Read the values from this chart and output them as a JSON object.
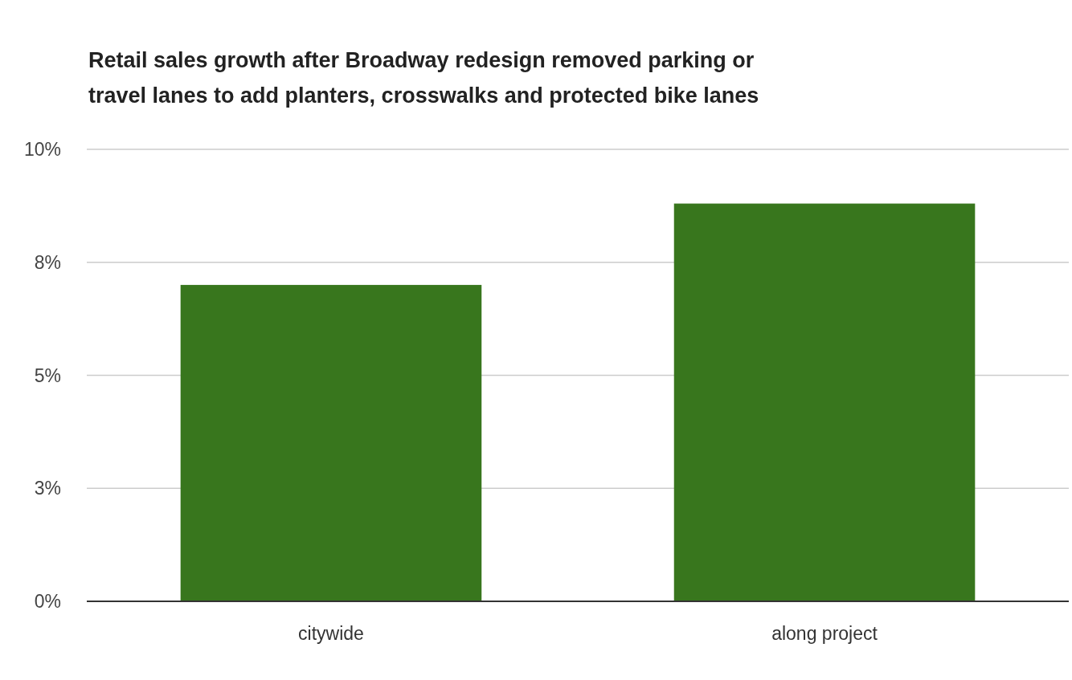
{
  "chart_data": {
    "type": "bar",
    "title": "Retail sales growth after Broadway redesign removed parking or travel lanes to add planters, crosswalks and protected bike lanes",
    "categories": [
      "citywide",
      "along project"
    ],
    "values": [
      7.0,
      8.8
    ],
    "color": "#38761d",
    "ylim": [
      0,
      10
    ],
    "yticks": [
      {
        "value": 0,
        "label": "0%"
      },
      {
        "value": 2.5,
        "label": "3%"
      },
      {
        "value": 5,
        "label": "5%"
      },
      {
        "value": 7.5,
        "label": "8%"
      },
      {
        "value": 10,
        "label": "10%"
      }
    ],
    "grid": "y"
  }
}
